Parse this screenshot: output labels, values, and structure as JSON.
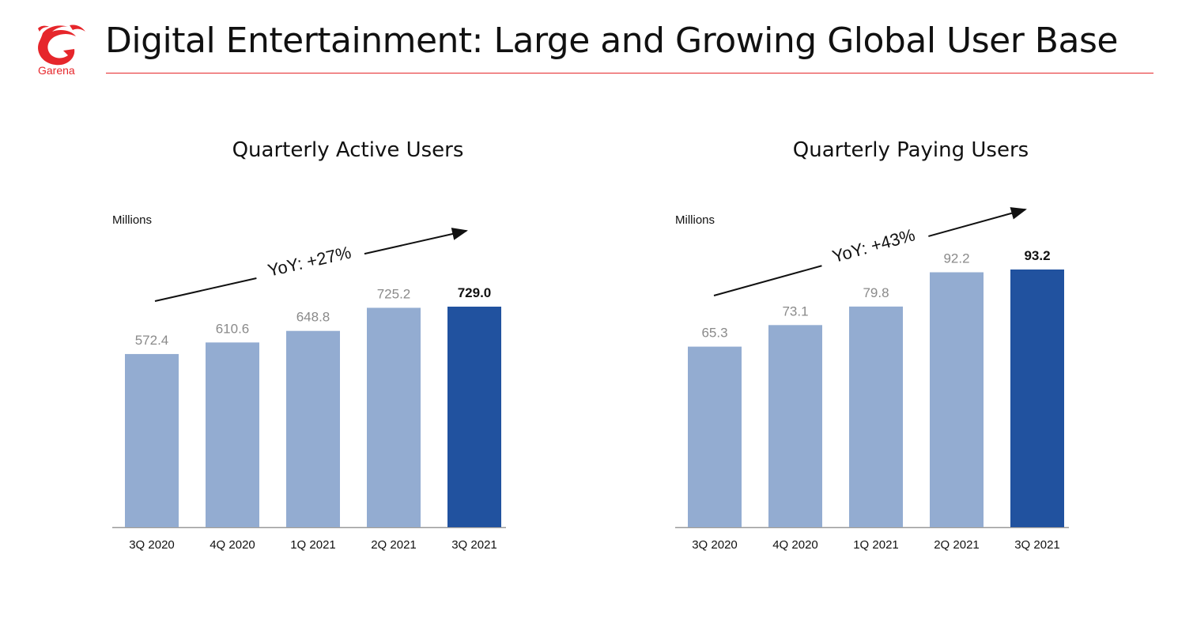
{
  "header": {
    "title": "Digital Entertainment: Large and Growing Global User Base",
    "logo_text": "Garena"
  },
  "colors": {
    "brand_red": "#e6262b",
    "bar_light": "#93acd1",
    "bar_dark": "#21529f",
    "label_grey": "#8a8a8a"
  },
  "charts": [
    {
      "title": "Quarterly Active Users",
      "unit": "Millions",
      "annotation": "YoY: +27%"
    },
    {
      "title": "Quarterly Paying Users",
      "unit": "Millions",
      "annotation": "YoY: +43%"
    }
  ],
  "chart_data": [
    {
      "type": "bar",
      "title": "Quarterly Active Users",
      "ylabel": "Millions",
      "categories": [
        "3Q 2020",
        "4Q 2020",
        "1Q 2021",
        "2Q 2021",
        "3Q 2021"
      ],
      "values": [
        572.4,
        610.6,
        648.8,
        725.2,
        729.0
      ],
      "value_labels": [
        "572.4",
        "610.6",
        "648.8",
        "725.2",
        "729.0"
      ],
      "highlight_index": 4,
      "ylim": [
        0,
        729.0
      ],
      "annotation": "YoY: +27%",
      "grid": false,
      "legend": "none"
    },
    {
      "type": "bar",
      "title": "Quarterly Paying Users",
      "ylabel": "Millions",
      "categories": [
        "3Q 2020",
        "4Q 2020",
        "1Q 2021",
        "2Q 2021",
        "3Q 2021"
      ],
      "values": [
        65.3,
        73.1,
        79.8,
        92.2,
        93.2
      ],
      "value_labels": [
        "65.3",
        "73.1",
        "79.8",
        "92.2",
        "93.2"
      ],
      "highlight_index": 4,
      "ylim": [
        0,
        93.2
      ],
      "annotation": "YoY: +43%",
      "grid": false,
      "legend": "none"
    }
  ]
}
